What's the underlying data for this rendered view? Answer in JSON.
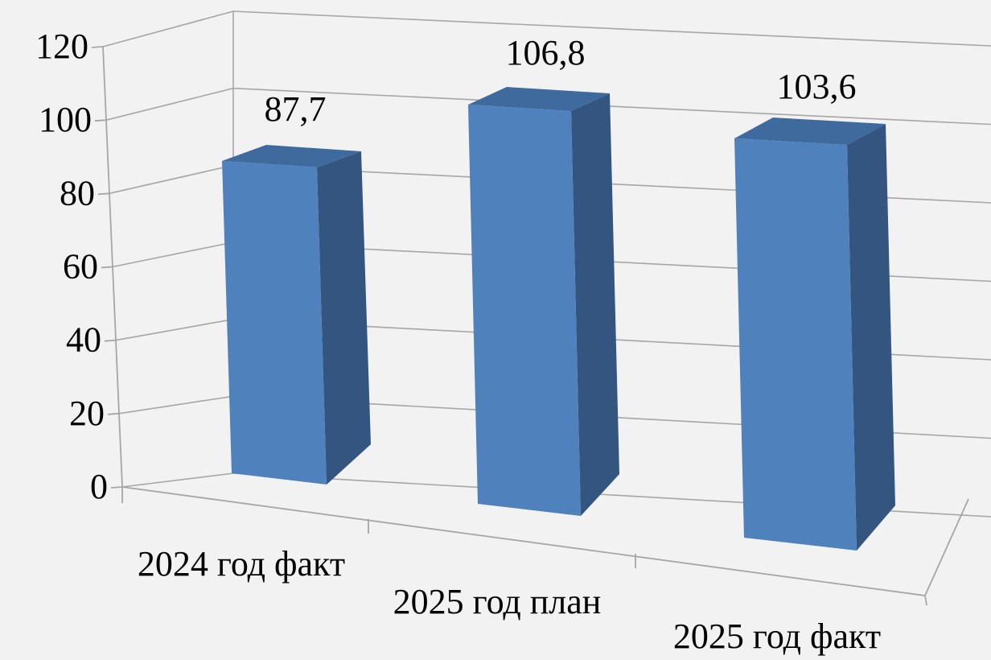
{
  "chart_data": {
    "type": "bar",
    "title": "",
    "xlabel": "",
    "ylabel": "",
    "categories": [
      "2024 год факт",
      "2025 год план",
      "2025 год факт"
    ],
    "values": [
      87.7,
      106.8,
      103.6
    ],
    "data_labels": [
      "87,7",
      "106,8",
      "103,6"
    ],
    "y_ticks": [
      "0",
      "20",
      "40",
      "60",
      "80",
      "100",
      "120"
    ],
    "ylim": [
      0,
      120
    ],
    "grid": true,
    "legend": "none",
    "style": "3d-column",
    "colors": {
      "front": "#4f81bd",
      "side": "#34557f",
      "top": "#3f6a9d",
      "grid": "#a6a6a6"
    }
  }
}
